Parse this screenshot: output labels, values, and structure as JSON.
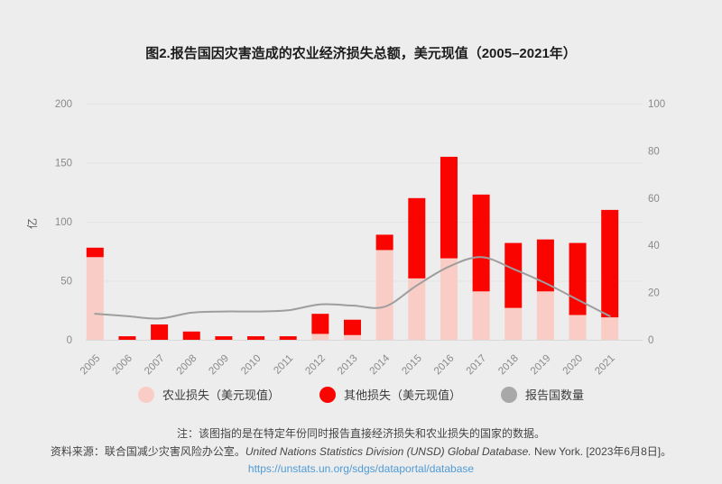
{
  "title": "图2.报告国因灾害造成的农业经济损失总额，美元现值（2005–2021年）",
  "chart_data": {
    "type": "bar",
    "stacked": true,
    "categories": [
      "2005",
      "2006",
      "2007",
      "2008",
      "2009",
      "2010",
      "2011",
      "2012",
      "2013",
      "2014",
      "2015",
      "2016",
      "2017",
      "2018",
      "2019",
      "2020",
      "2021"
    ],
    "series": [
      {
        "name": "农业损失（美元现值）",
        "type": "bar",
        "axis": "left",
        "color": "#f9cdc5",
        "values": [
          70,
          0,
          0,
          0,
          0,
          0,
          0,
          5,
          4,
          76,
          52,
          69,
          41,
          27,
          41,
          21,
          19
        ]
      },
      {
        "name": "其他损失（美元现值）",
        "type": "bar",
        "axis": "left",
        "color": "#fa0400",
        "values": [
          8,
          3,
          13,
          7,
          3,
          3,
          3,
          17,
          13,
          13,
          68,
          86,
          82,
          55,
          44,
          61,
          91
        ]
      },
      {
        "name": "报告国数量",
        "type": "line",
        "axis": "right",
        "color": "#9e9e9e",
        "values": [
          11,
          10,
          9,
          11.5,
          12,
          12,
          12.5,
          15,
          14.5,
          14,
          23,
          31,
          35,
          30,
          24,
          17,
          10
        ]
      }
    ],
    "left_axis": {
      "label": "亿",
      "ticks": [
        0,
        50,
        100,
        150,
        200
      ],
      "range": [
        0,
        200
      ]
    },
    "right_axis": {
      "ticks": [
        0,
        20,
        40,
        60,
        80,
        100
      ],
      "range": [
        0,
        100
      ]
    },
    "grid": true,
    "legend_position": "bottom",
    "colors": {
      "gridline": "#e4e4e4",
      "axis_line": "#d9d9d9",
      "tick_label": "#8a8a8a",
      "unit_label": "#5a5a5a"
    }
  },
  "legend": {
    "items": [
      {
        "label": "农业损失（美元现值）",
        "color": "#f9cdc5"
      },
      {
        "label": "其他损失（美元现值）",
        "color": "#fa0400"
      },
      {
        "label": "报告国数量",
        "color": "#a8a8a8"
      }
    ]
  },
  "footer": {
    "note": "注：该图指的是在特定年份同时报告直接经济损失和农业损失的国家的数据。",
    "source_prefix": "资料来源：联合国减少灾害风险办公室。",
    "source_italic": "United Nations Statistics Division (UNSD) Global Database.",
    "source_suffix": " New York. [2023年6月8日]。",
    "link": "https://unstats.un.org/sdgs/dataportal/database"
  },
  "page": {
    "background": "#ededed"
  }
}
